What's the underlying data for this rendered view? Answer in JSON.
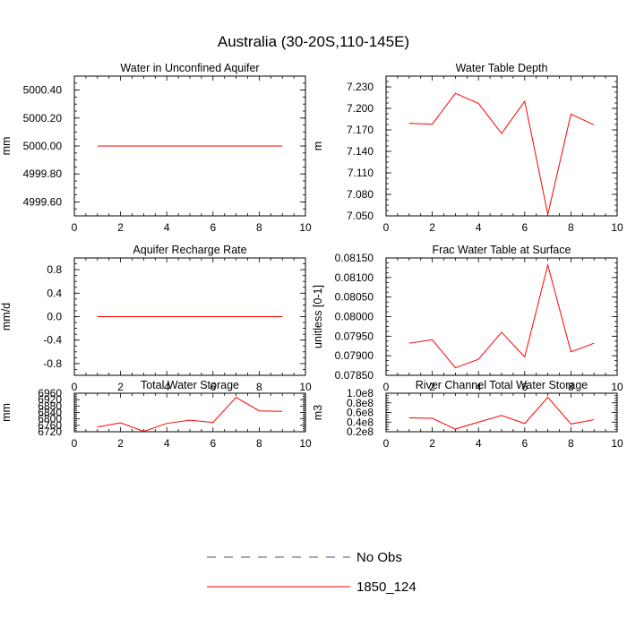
{
  "figure": {
    "title": "Australia (30-20S,110-145E)",
    "legend": {
      "placement": "bottom-center",
      "entries": [
        {
          "label": "No Obs",
          "style": "dashed",
          "color": "#4a4a9a"
        },
        {
          "label": "1850_124",
          "style": "solid",
          "color": "#ff0000"
        }
      ]
    }
  },
  "chart_data": [
    {
      "type": "line",
      "title": "Water in Unconfined Aquifer",
      "ylabel": "mm",
      "xlim": [
        0,
        10
      ],
      "ylim": [
        4999.5,
        5000.5
      ],
      "xticks": [
        "0",
        "2",
        "4",
        "6",
        "8",
        "10"
      ],
      "yticks": [
        {
          "v": 4999.6,
          "label": "4999.60"
        },
        {
          "v": 4999.8,
          "label": "4999.80"
        },
        {
          "v": 5000.0,
          "label": "5000.00"
        },
        {
          "v": 5000.2,
          "label": "5000.20"
        },
        {
          "v": 5000.4,
          "label": "5000.40"
        }
      ],
      "minor_y": 0.05,
      "x": [
        1,
        2,
        3,
        4,
        5,
        6,
        7,
        8,
        9
      ],
      "series": [
        {
          "values": [
            5000.0,
            5000.0,
            5000.0,
            5000.0,
            5000.0,
            5000.0,
            5000.0,
            5000.0,
            5000.0
          ],
          "color": "#ff0000"
        }
      ]
    },
    {
      "type": "line",
      "title": "Water Table Depth",
      "ylabel": "m",
      "xlim": [
        0,
        10
      ],
      "ylim": [
        7.05,
        7.245
      ],
      "xticks": [
        "0",
        "2",
        "4",
        "6",
        "8",
        "10"
      ],
      "yticks": [
        {
          "v": 7.05,
          "label": "7.050"
        },
        {
          "v": 7.08,
          "label": "7.080"
        },
        {
          "v": 7.11,
          "label": "7.110"
        },
        {
          "v": 7.14,
          "label": "7.140"
        },
        {
          "v": 7.17,
          "label": "7.170"
        },
        {
          "v": 7.2,
          "label": "7.200"
        },
        {
          "v": 7.23,
          "label": "7.230"
        }
      ],
      "minor_y": 0.0075,
      "x": [
        1,
        2,
        3,
        4,
        5,
        6,
        7,
        8,
        9
      ],
      "series": [
        {
          "values": [
            7.179,
            7.178,
            7.221,
            7.207,
            7.165,
            7.21,
            7.052,
            7.192,
            7.177
          ],
          "color": "#ff0000"
        }
      ]
    },
    {
      "type": "line",
      "title": "Aquifer Recharge Rate",
      "ylabel": "mm/d",
      "xlim": [
        0,
        10
      ],
      "ylim": [
        -1,
        1
      ],
      "xticks": [
        "0",
        "2",
        "4",
        "6",
        "8",
        "10"
      ],
      "yticks": [
        {
          "v": -0.8,
          "label": "-0.8"
        },
        {
          "v": -0.4,
          "label": "-0.4"
        },
        {
          "v": 0.0,
          "label": "0.0"
        },
        {
          "v": 0.4,
          "label": "0.4"
        },
        {
          "v": 0.8,
          "label": "0.8"
        }
      ],
      "minor_y": 0.1,
      "x": [
        1,
        2,
        3,
        4,
        5,
        6,
        7,
        8,
        9
      ],
      "series": [
        {
          "values": [
            0,
            0,
            0,
            0,
            0,
            0,
            0,
            0,
            0
          ],
          "color": "#ff0000"
        }
      ]
    },
    {
      "type": "line",
      "title": "Frac Water Table at Surface",
      "ylabel": "unitless [0-1]",
      "xlim": [
        0,
        10
      ],
      "ylim": [
        0.0785,
        0.0815
      ],
      "xticks": [
        "0",
        "2",
        "4",
        "6",
        "8",
        "10"
      ],
      "yticks": [
        {
          "v": 0.0785,
          "label": "0.07850"
        },
        {
          "v": 0.079,
          "label": "0.07900"
        },
        {
          "v": 0.0795,
          "label": "0.07950"
        },
        {
          "v": 0.08,
          "label": "0.08000"
        },
        {
          "v": 0.0805,
          "label": "0.08050"
        },
        {
          "v": 0.081,
          "label": "0.08100"
        },
        {
          "v": 0.0815,
          "label": "0.08150"
        }
      ],
      "minor_y": 0.000125,
      "x": [
        1,
        2,
        3,
        4,
        5,
        6,
        7,
        8,
        9
      ],
      "series": [
        {
          "values": [
            0.07932,
            0.07941,
            0.07869,
            0.07891,
            0.0796,
            0.07897,
            0.08132,
            0.0791,
            0.07932
          ],
          "color": "#ff0000"
        }
      ]
    },
    {
      "type": "line",
      "title": "Total Water Storage",
      "ylabel": "mm",
      "xlim": [
        0,
        10
      ],
      "ylim": [
        6720,
        6960
      ],
      "xticks": [
        "0",
        "2",
        "4",
        "6",
        "8",
        "10"
      ],
      "yticks": [
        {
          "v": 6720,
          "label": "6720"
        },
        {
          "v": 6760,
          "label": "6760"
        },
        {
          "v": 6800,
          "label": "6800"
        },
        {
          "v": 6840,
          "label": "6840"
        },
        {
          "v": 6880,
          "label": "6880"
        },
        {
          "v": 6920,
          "label": "6920"
        },
        {
          "v": 6960,
          "label": "6960"
        }
      ],
      "minor_y": 10,
      "x": [
        1,
        2,
        3,
        4,
        5,
        6,
        7,
        8,
        9
      ],
      "series": [
        {
          "values": [
            6749,
            6776,
            6722,
            6772,
            6792,
            6778,
            6934,
            6850,
            6847
          ],
          "color": "#ff0000"
        }
      ]
    },
    {
      "type": "line",
      "title": "River Channel Total Water Storage",
      "ylabel": "m3",
      "xlim": [
        0,
        10
      ],
      "ylim": [
        20000000,
        100000000
      ],
      "xticks": [
        "0",
        "2",
        "4",
        "6",
        "8",
        "10"
      ],
      "yticks": [
        {
          "v": 20000000,
          "label": "0.2e8"
        },
        {
          "v": 40000000,
          "label": "0.4e8"
        },
        {
          "v": 60000000,
          "label": "0.6e8"
        },
        {
          "v": 80000000,
          "label": "0.8e8"
        },
        {
          "v": 100000000,
          "label": "1.0e8"
        }
      ],
      "minor_y": 5000000,
      "x": [
        1,
        2,
        3,
        4,
        5,
        6,
        7,
        8,
        9
      ],
      "series": [
        {
          "values": [
            48800000,
            47800000,
            25500000,
            40000000,
            54000000,
            37000000,
            91500000,
            36000000,
            45000000
          ],
          "color": "#ff0000"
        }
      ]
    }
  ]
}
